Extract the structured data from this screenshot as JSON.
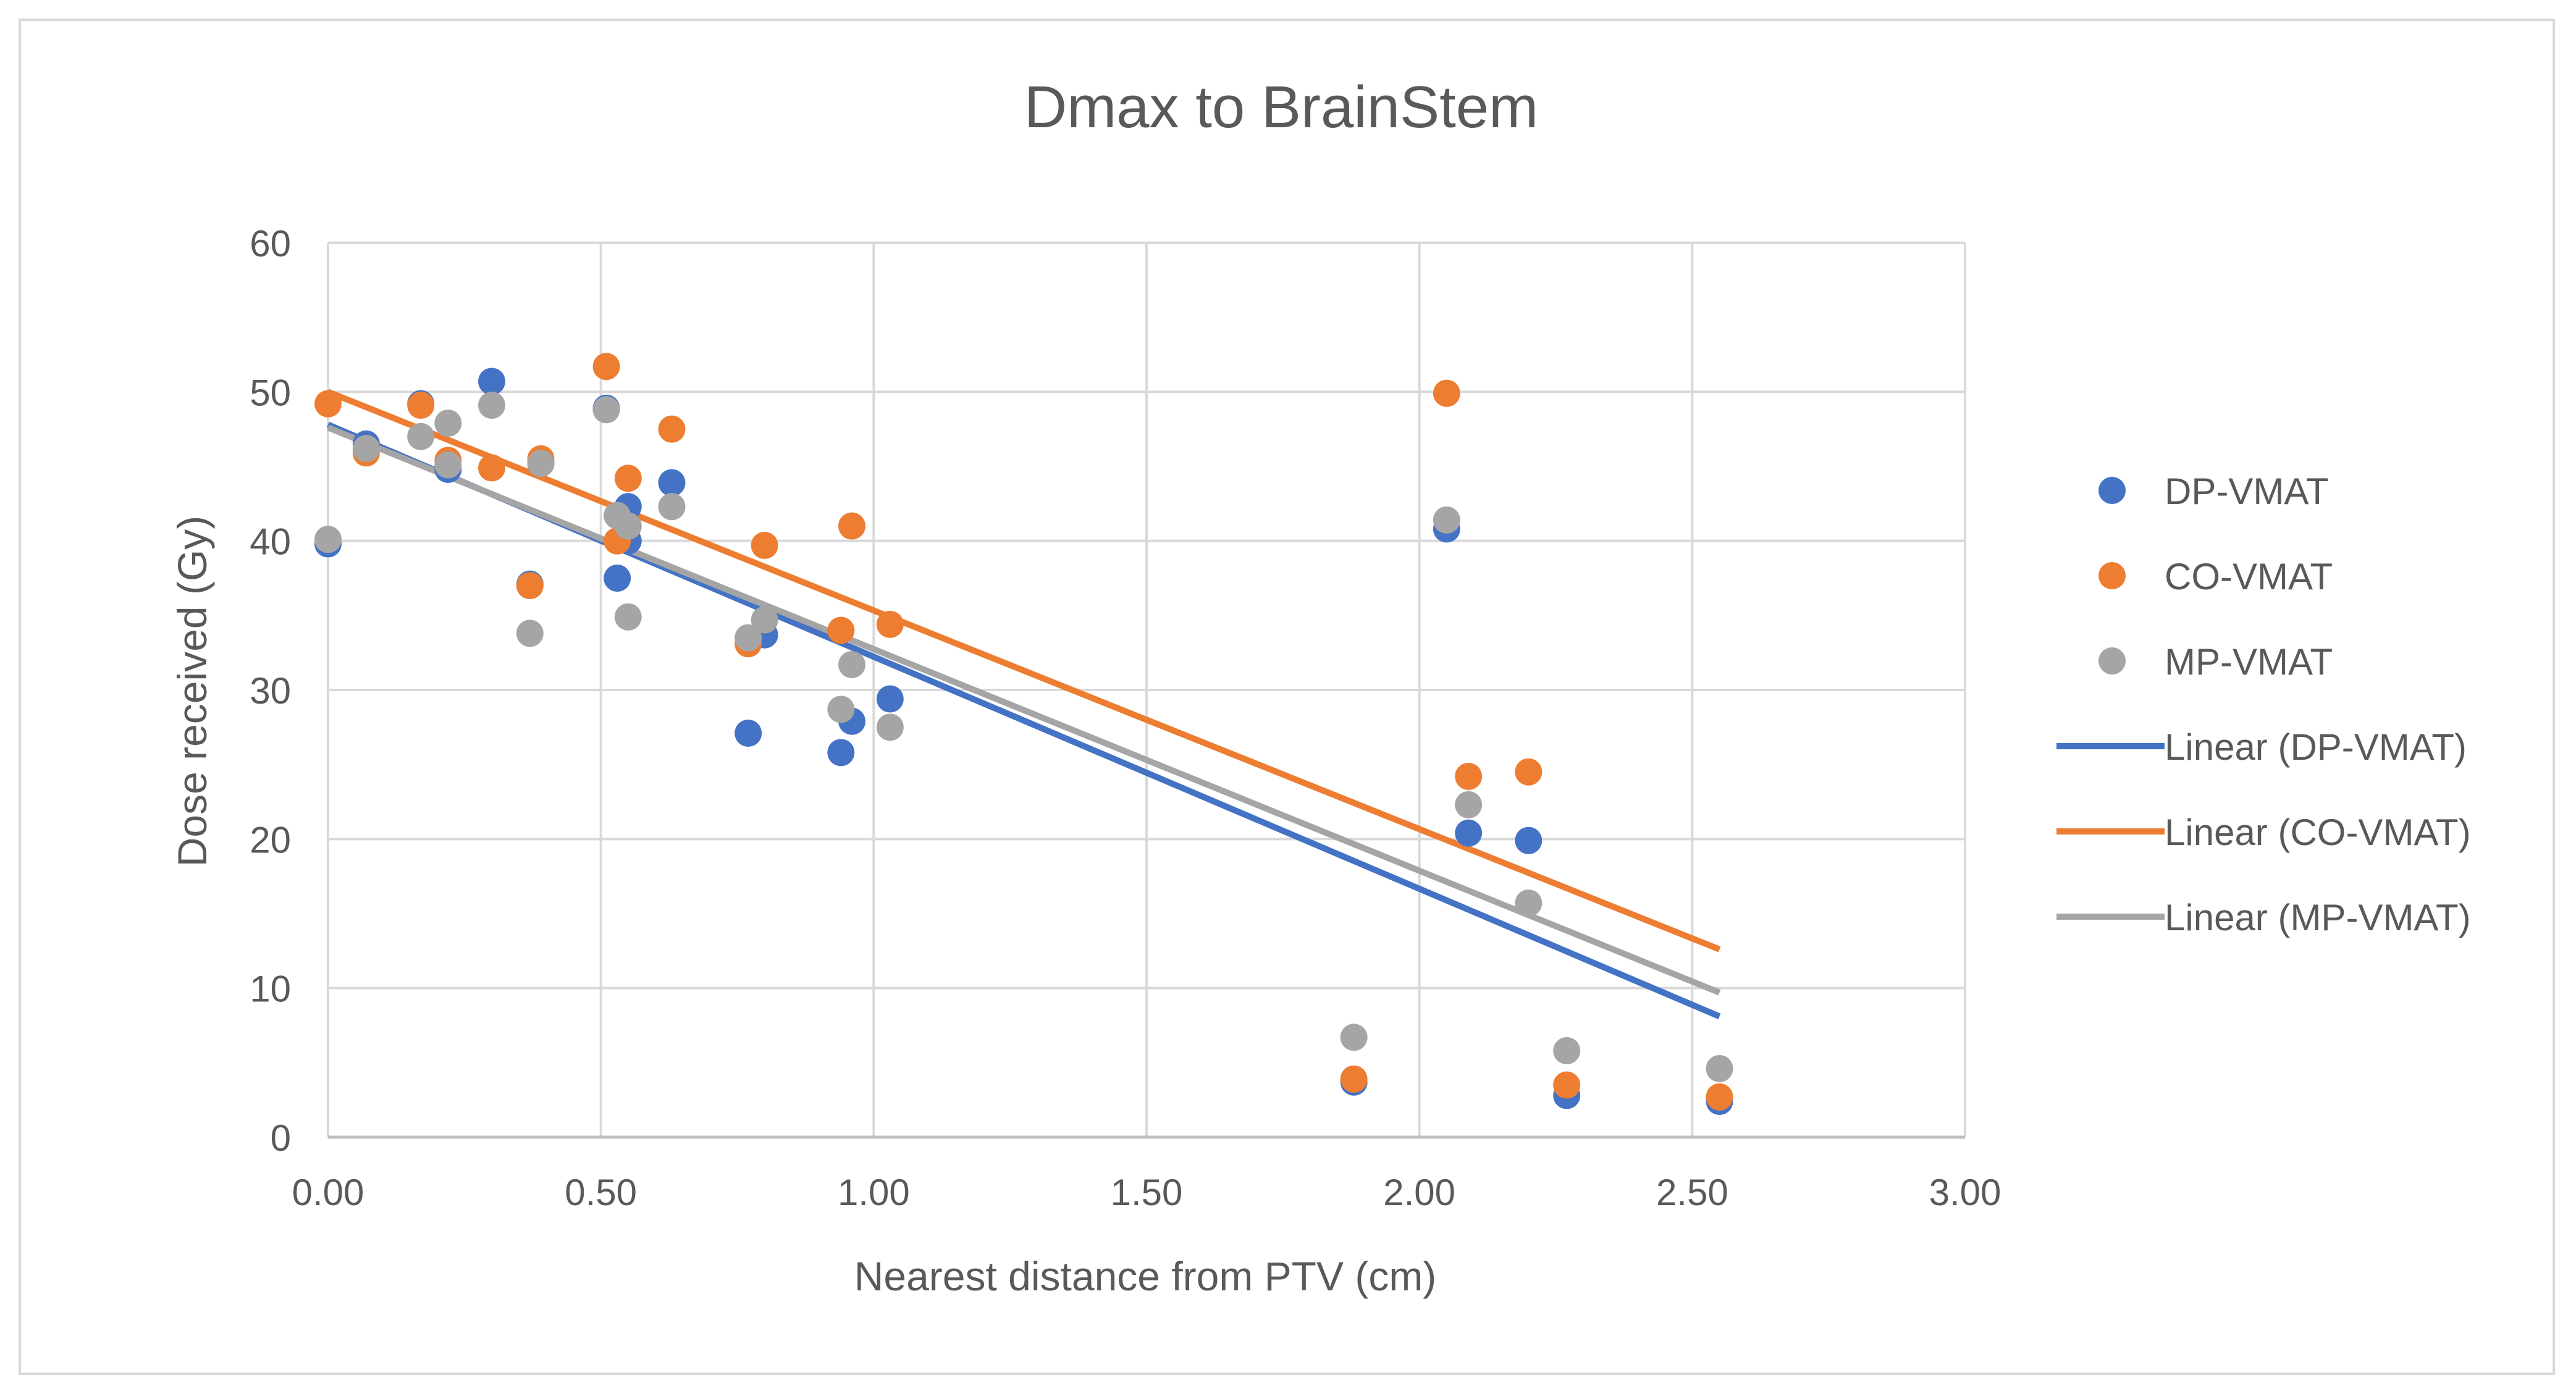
{
  "chart_data": {
    "type": "scatter",
    "title": "Dmax to BrainStem",
    "xlabel": "Nearest distance from PTV (cm)",
    "ylabel": "Dose received (Gy)",
    "xlim": [
      0,
      3
    ],
    "ylim": [
      0,
      60
    ],
    "x_ticks": [
      "0.00",
      "0.50",
      "1.00",
      "1.50",
      "2.00",
      "2.50",
      "3.00"
    ],
    "y_ticks": [
      "0",
      "10",
      "20",
      "30",
      "40",
      "50",
      "60"
    ],
    "grid": true,
    "legend_position": "right",
    "series": [
      {
        "name": "DP-VMAT",
        "color": "#4472c4",
        "points": [
          [
            0.0,
            39.8
          ],
          [
            0.07,
            46.5
          ],
          [
            0.17,
            49.2
          ],
          [
            0.22,
            44.8
          ],
          [
            0.3,
            50.7
          ],
          [
            0.37,
            37.1
          ],
          [
            0.39,
            45.2
          ],
          [
            0.51,
            48.9
          ],
          [
            0.53,
            37.5
          ],
          [
            0.55,
            42.3
          ],
          [
            0.55,
            40.0
          ],
          [
            0.63,
            43.9
          ],
          [
            0.77,
            27.1
          ],
          [
            0.8,
            33.7
          ],
          [
            0.94,
            25.8
          ],
          [
            0.96,
            27.9
          ],
          [
            1.03,
            29.4
          ],
          [
            1.88,
            3.7
          ],
          [
            2.05,
            40.8
          ],
          [
            2.09,
            20.4
          ],
          [
            2.2,
            19.9
          ],
          [
            2.27,
            2.8
          ],
          [
            2.55,
            2.4
          ]
        ]
      },
      {
        "name": "CO-VMAT",
        "color": "#ed7d31",
        "points": [
          [
            0.0,
            49.2
          ],
          [
            0.07,
            45.9
          ],
          [
            0.17,
            49.1
          ],
          [
            0.22,
            45.4
          ],
          [
            0.3,
            44.9
          ],
          [
            0.37,
            37.0
          ],
          [
            0.39,
            45.5
          ],
          [
            0.51,
            51.7
          ],
          [
            0.53,
            40.0
          ],
          [
            0.55,
            44.2
          ],
          [
            0.63,
            47.5
          ],
          [
            0.77,
            33.1
          ],
          [
            0.8,
            39.7
          ],
          [
            0.94,
            34.0
          ],
          [
            0.96,
            41.0
          ],
          [
            1.03,
            34.4
          ],
          [
            1.88,
            3.9
          ],
          [
            2.05,
            49.9
          ],
          [
            2.09,
            24.2
          ],
          [
            2.2,
            24.5
          ],
          [
            2.27,
            3.5
          ],
          [
            2.55,
            2.7
          ]
        ]
      },
      {
        "name": "MP-VMAT",
        "color": "#a5a5a5",
        "points": [
          [
            0.0,
            40.1
          ],
          [
            0.07,
            46.2
          ],
          [
            0.17,
            47.0
          ],
          [
            0.22,
            47.9
          ],
          [
            0.22,
            45.1
          ],
          [
            0.3,
            49.1
          ],
          [
            0.37,
            33.8
          ],
          [
            0.39,
            45.2
          ],
          [
            0.51,
            48.8
          ],
          [
            0.53,
            41.7
          ],
          [
            0.55,
            41.0
          ],
          [
            0.55,
            34.9
          ],
          [
            0.63,
            42.3
          ],
          [
            0.77,
            33.5
          ],
          [
            0.8,
            34.7
          ],
          [
            0.94,
            28.7
          ],
          [
            0.96,
            31.7
          ],
          [
            1.03,
            27.5
          ],
          [
            1.88,
            6.7
          ],
          [
            2.05,
            41.4
          ],
          [
            2.09,
            22.3
          ],
          [
            2.2,
            15.7
          ],
          [
            2.27,
            5.8
          ],
          [
            2.55,
            4.6
          ]
        ]
      }
    ],
    "trendlines": [
      {
        "name": "Linear (DP-VMAT)",
        "color": "#4472c4",
        "x": [
          0.0,
          2.55
        ],
        "y": [
          47.8,
          8.1
        ]
      },
      {
        "name": "Linear (CO-VMAT)",
        "color": "#ed7d31",
        "x": [
          0.0,
          2.55
        ],
        "y": [
          50.0,
          12.6
        ]
      },
      {
        "name": "Linear (MP-VMAT)",
        "color": "#a5a5a5",
        "x": [
          0.0,
          2.55
        ],
        "y": [
          47.6,
          9.7
        ]
      }
    ]
  }
}
